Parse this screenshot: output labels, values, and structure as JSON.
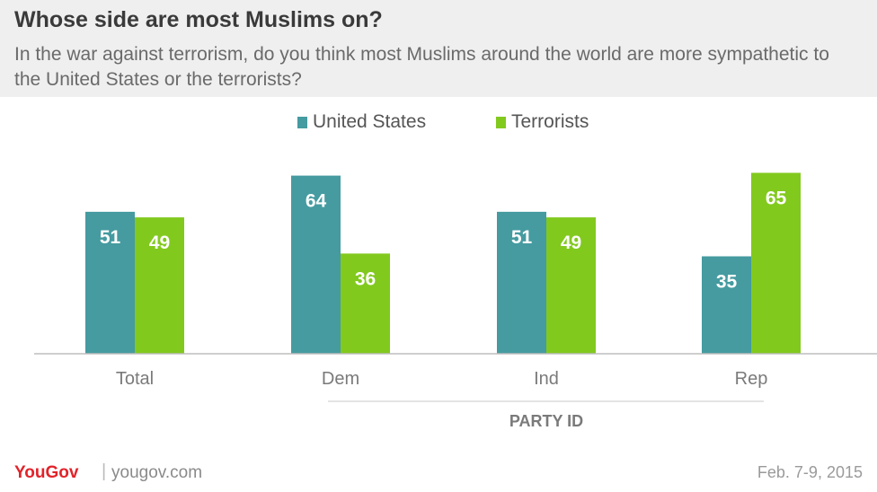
{
  "header": {
    "title": "Whose side are most Muslims on?",
    "subtitle": "In the war against terrorism, do you think most Muslims around the world are more sympathetic to the United States or the terrorists?"
  },
  "colors": {
    "us": "#459ba0",
    "terrorists": "#82c91e",
    "axis": "#bdbdbd",
    "label": "#7a7a7a"
  },
  "chart_data": {
    "type": "bar",
    "categories": [
      "Total",
      "Dem",
      "Ind",
      "Rep"
    ],
    "series": [
      {
        "name": "United States",
        "values": [
          51,
          64,
          51,
          35
        ]
      },
      {
        "name": "Terrorists",
        "values": [
          49,
          36,
          49,
          65
        ]
      }
    ],
    "ylim": [
      0,
      70
    ],
    "group_label": "PARTY ID",
    "legend_position": "top-center"
  },
  "footer": {
    "logo": "YouGov",
    "separator": "|",
    "site": "yougov.com",
    "date": "Feb. 7-9, 2015"
  }
}
